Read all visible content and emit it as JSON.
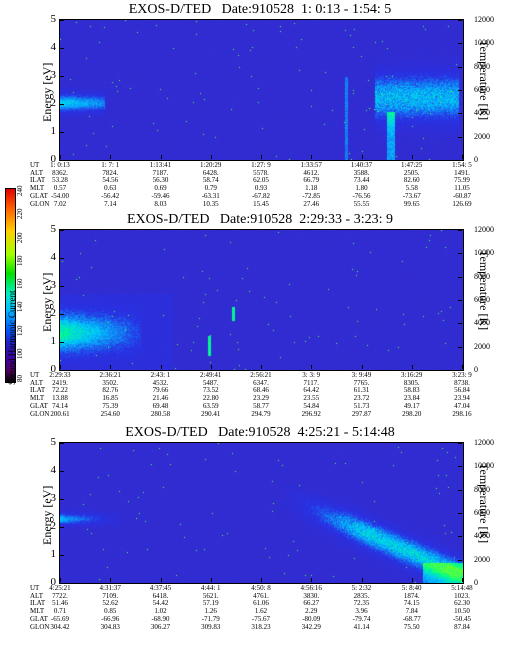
{
  "colorbar": {
    "label": "Second Harmonic Current",
    "ticks": [
      "240",
      "220",
      "200",
      "180",
      "160",
      "140",
      "120",
      "100",
      "80"
    ]
  },
  "row_labels": [
    "UT",
    "ALT",
    "ILAT",
    "MLT",
    "GLAT",
    "GLON"
  ],
  "axis_labels": {
    "left": "Energy [eV]",
    "right": "Temperature [K]"
  },
  "chart_data": [
    {
      "type": "heatmap",
      "title": "EXOS-D/TED   Date:910528  1: 0:13 - 1:54: 5",
      "ylabel": "Energy [eV]",
      "y2label": "Temperature [K]",
      "ylim": [
        0,
        5
      ],
      "y2lim": [
        0,
        12000
      ],
      "yticks": [
        "0",
        "1",
        "2",
        "3",
        "4",
        "5"
      ],
      "y2ticks": [
        "0",
        "2000",
        "4000",
        "6000",
        "8000",
        "10000",
        "12000"
      ],
      "table": [
        [
          "1: 0:13",
          "8362.",
          "53.28",
          "0.57",
          "-54.00",
          "7.02"
        ],
        [
          "1: 7: 1",
          "7824.",
          "54.56",
          "0.63",
          "-56.42",
          "7.14"
        ],
        [
          "1:13:41",
          "7187.",
          "56.30",
          "0.69",
          "-59.46",
          "8.03"
        ],
        [
          "1:20:29",
          "6428.",
          "58.74",
          "0.79",
          "-63.31",
          "10.35"
        ],
        [
          "1:27: 9",
          "5578.",
          "62.05",
          "0.93",
          "-67.82",
          "15.45"
        ],
        [
          "1:33:57",
          "4612.",
          "66.79",
          "1.18",
          "-72.85",
          "27.46"
        ],
        [
          "1:40:37",
          "3588.",
          "73.44",
          "1.80",
          "-76.56",
          "55.55"
        ],
        [
          "1:47:25",
          "2505.",
          "82.60",
          "5.58",
          "-73.67",
          "99.65"
        ],
        [
          "1:54: 5",
          "1491.",
          "75.99",
          "11.05",
          "-60.87",
          "126.69"
        ]
      ]
    },
    {
      "type": "heatmap",
      "title": "EXOS-D/TED   Date:910528  2:29:33 - 3:23: 9",
      "ylabel": "Energy [eV]",
      "y2label": "Temperature [K]",
      "ylim": [
        0,
        5
      ],
      "y2lim": [
        0,
        12000
      ],
      "yticks": [
        "0",
        "1",
        "2",
        "3",
        "4",
        "5"
      ],
      "y2ticks": [
        "0",
        "2000",
        "4000",
        "6000",
        "8000",
        "10000",
        "12000"
      ],
      "table": [
        [
          "2:29:33",
          "2419.",
          "72.22",
          "13.88",
          "74.14",
          "200.61"
        ],
        [
          "2:36:21",
          "3502.",
          "82.76",
          "16.85",
          "75.39",
          "254.60"
        ],
        [
          "2:43: 1",
          "4532.",
          "79.66",
          "21.46",
          "69.48",
          "280.58"
        ],
        [
          "2:49:41",
          "5487.",
          "73.52",
          "22.80",
          "63.59",
          "290.41"
        ],
        [
          "2:56:21",
          "6347.",
          "68.46",
          "23.29",
          "58.77",
          "294.79"
        ],
        [
          "3: 3: 9",
          "7117.",
          "64.42",
          "23.55",
          "54.84",
          "296.92"
        ],
        [
          "3: 9:49",
          "7765.",
          "61.31",
          "23.72",
          "51.73",
          "297.87"
        ],
        [
          "3:16:29",
          "8305.",
          "58.83",
          "23.84",
          "49.17",
          "298.20"
        ],
        [
          "3:23: 9",
          "8738.",
          "56.84",
          "23.94",
          "47.04",
          "298.16"
        ]
      ]
    },
    {
      "type": "heatmap",
      "title": "EXOS-D/TED   Date:910528  4:25:21 - 5:14:48",
      "ylabel": "Energy [eV]",
      "y2label": "Temperature [K]",
      "ylim": [
        0,
        5
      ],
      "y2lim": [
        0,
        12000
      ],
      "yticks": [
        "0",
        "1",
        "2",
        "3",
        "4",
        "5"
      ],
      "y2ticks": [
        "0",
        "2000",
        "4000",
        "6000",
        "8000",
        "10000",
        "12000"
      ],
      "table": [
        [
          "4:25:21",
          "7722.",
          "51.46",
          "0.71",
          "-65.69",
          "304.42"
        ],
        [
          "4:31:37",
          "7109.",
          "52.62",
          "0.85",
          "-66.96",
          "304.83"
        ],
        [
          "4:37:45",
          "6418.",
          "54.42",
          "1.02",
          "-68.90",
          "306.27"
        ],
        [
          "4:44: 1",
          "5621.",
          "57.19",
          "1.26",
          "-71.79",
          "309.83"
        ],
        [
          "4:50: 8",
          "4761.",
          "61.06",
          "1.62",
          "-75.67",
          "318.23"
        ],
        [
          "4:56:16",
          "3830.",
          "66.27",
          "2.29",
          "-80.09",
          "342.29"
        ],
        [
          "5: 2:32",
          "2835.",
          "72.35",
          "3.96",
          "-79.74",
          "41.14"
        ],
        [
          "5: 8:40",
          "1874.",
          "74.15",
          "7.84",
          "-68.77",
          "75.50"
        ],
        [
          "5:14:48",
          "1023.",
          "62.30",
          "10.50",
          "-50.45",
          "87.84"
        ]
      ]
    }
  ]
}
